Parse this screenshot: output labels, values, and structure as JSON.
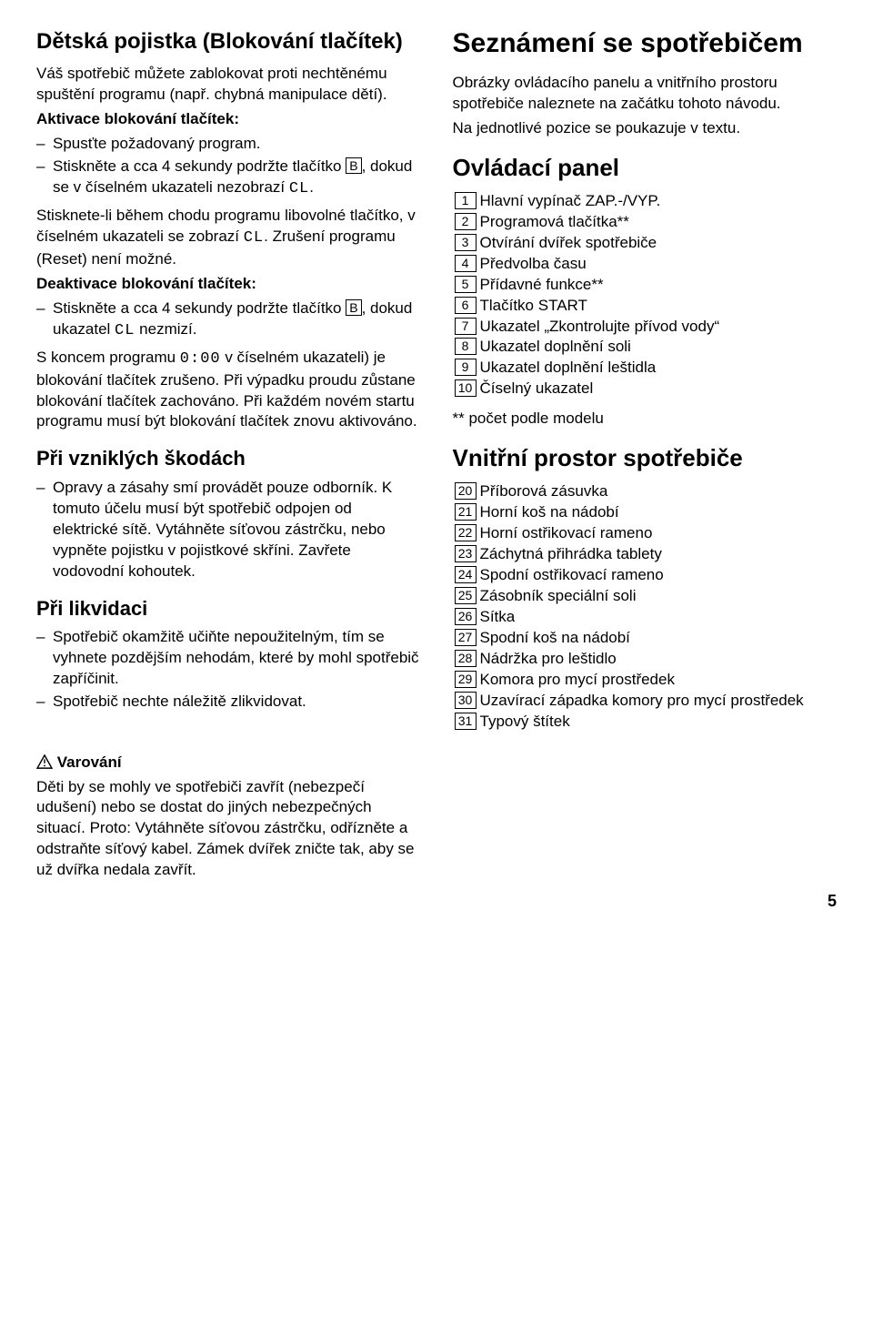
{
  "left": {
    "h1": "Dětská pojistka (Blokování tlačítek)",
    "p1": "Váš spotřebič můžete zablokovat proti nechtěnému spuštění programu (např. chybná manipulace dětí).",
    "act_h": "Aktivace blokování tlačítek:",
    "act_li1": "Spusťte požadovaný program.",
    "act_li2a": "Stiskněte a cca 4 sekundy podržte tlačítko ",
    "act_li2_box": "B",
    "act_li2b": ", dokud se v číselném ukazateli nezobrazí ",
    "act_li2_seg": "CL",
    "act_li2c": ".",
    "p2a": "Stisknete-li během chodu programu libovolné tlačítko, v číselném ukazateli se zobrazí ",
    "p2_seg": "CL",
    "p2b": ". Zrušení programu (Reset) není možné.",
    "deact_h": "Deaktivace blokování tlačítek:",
    "deact_li1a": "Stiskněte a cca 4 sekundy podržte tlačítko ",
    "deact_li1_box": "B",
    "deact_li1b": ", dokud ukazatel ",
    "deact_li1_seg": "CL",
    "deact_li1c": " nezmizí.",
    "p3a": "S koncem programu ",
    "p3_seg": "0:00",
    "p3b": " v číselném ukazateli) je blokování tlačítek zrušeno. Při výpadku proudu zůstane blokování tlačítek zachováno. Při každém novém startu programu musí být blokování tlačítek znovu aktivováno.",
    "h2a": "Při vzniklých škodách",
    "dm_li1": "Opravy a zásahy smí provádět pouze odborník. K tomuto účelu musí být spotřebič odpojen od elektrické sítě. Vytáhněte síťovou zástrčku, nebo vypněte pojistku v pojistkové skříni. Zavřete vodovodní kohoutek.",
    "h2b": "Při likvidaci",
    "lk_li1": "Spotřebič okamžitě učiňte nepoužitelným, tím se vyhnete pozdějším nehodám, které by mohl spotřebič zapříčinit.",
    "lk_li2": "Spotřebič nechte náležitě zlikvidovat."
  },
  "right": {
    "h1": "Seznámení se spotřebičem",
    "p1": "Obrázky ovládacího panelu a vnitřního prostoru spotřebiče naleznete na začátku tohoto návodu.",
    "p2": "Na jednotlivé pozice se poukazuje v textu.",
    "h2a": "Ovládací panel",
    "panel": [
      {
        "n": "1",
        "t": "Hlavní vypínač ZAP.-/VYP."
      },
      {
        "n": "2",
        "t": "Programová tlačítka**"
      },
      {
        "n": "3",
        "t": "Otvírání dvířek spotřebiče"
      },
      {
        "n": "4",
        "t": "Předvolba času"
      },
      {
        "n": "5",
        "t": "Přídavné funkce**"
      },
      {
        "n": "6",
        "t": "Tlačítko START"
      },
      {
        "n": "7",
        "t": "Ukazatel „Zkontrolujte přívod vody“"
      },
      {
        "n": "8",
        "t": "Ukazatel doplnění soli"
      },
      {
        "n": "9",
        "t": "Ukazatel doplnění leštidla"
      },
      {
        "n": "10",
        "t": "Číselný ukazatel"
      }
    ],
    "note": "** počet podle modelu",
    "h2b": "Vnitřní prostor spotřebiče",
    "interior": [
      {
        "n": "20",
        "t": "Příborová zásuvka"
      },
      {
        "n": "21",
        "t": "Horní koš na nádobí"
      },
      {
        "n": "22",
        "t": "Horní ostřikovací rameno"
      },
      {
        "n": "23",
        "t": "Záchytná přihrádka tablety"
      },
      {
        "n": "24",
        "t": "Spodní ostřikovací rameno"
      },
      {
        "n": "25",
        "t": "Zásobník speciální soli"
      },
      {
        "n": "26",
        "t": "Sítka"
      },
      {
        "n": "27",
        "t": "Spodní koš na nádobí"
      },
      {
        "n": "28",
        "t": "Nádržka pro leštidlo"
      },
      {
        "n": "29",
        "t": "Komora pro mycí prostředek"
      },
      {
        "n": "30",
        "t": "Uzavírací západka komory pro mycí prostředek"
      },
      {
        "n": "31",
        "t": "Typový štítek"
      }
    ]
  },
  "bottom": {
    "warn_h": "Varování",
    "warn_p": "Děti by se mohly ve spotřebiči zavřít (nebezpečí udušení) nebo se dostat do jiných nebezpečných situací. Proto: Vytáhněte síťovou zástrčku, odřízněte a odstraňte síťový kabel. Zámek dvířek zničte tak, aby se už dvířka nedala zavřít."
  },
  "page": "5"
}
